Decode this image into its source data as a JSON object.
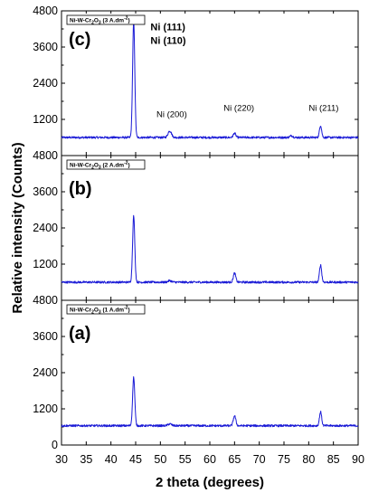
{
  "chart_data": {
    "type": "line",
    "xlabel": "2 theta (degrees)",
    "ylabel": "Relative intensity (Counts)",
    "x_ticks": [
      "30",
      "35",
      "40",
      "45",
      "50",
      "55",
      "60",
      "65",
      "70",
      "75",
      "80",
      "85",
      "90"
    ],
    "xlim": [
      30,
      90
    ],
    "line_color": "#1a1ad6",
    "panels": [
      {
        "id": "c",
        "letter": "(c)",
        "legend": "Ni-W-Cr2O3 (3 A.dm-2)",
        "legend_main": "Ni-W-Cr",
        "legend_sub": "2",
        "legend_o": "O",
        "legend_sub2": "3",
        "legend_rest": " (3 A.dm",
        "legend_sup": "-2",
        "legend_end": ")",
        "ylim": [
          0,
          4800
        ],
        "y_ticks": [
          "1200",
          "2400",
          "3600",
          "4800"
        ],
        "baseline": 600,
        "peaks": [
          {
            "x": 44.6,
            "y": 4450,
            "w": 0.22
          },
          {
            "x": 51.9,
            "y": 820,
            "w": 0.35
          },
          {
            "x": 65.0,
            "y": 740,
            "w": 0.25
          },
          {
            "x": 76.5,
            "y": 660,
            "w": 0.3
          },
          {
            "x": 82.4,
            "y": 1000,
            "w": 0.22
          }
        ],
        "annotations": [
          {
            "text": "Ni (111)",
            "x": 48.0,
            "y": 4150,
            "big": true
          },
          {
            "text": "Ni (110)",
            "x": 48.0,
            "y": 3700,
            "big": true
          },
          {
            "text": "Ni (200)",
            "x": 49.2,
            "y": 1280,
            "big": false
          },
          {
            "text": "Ni (220)",
            "x": 62.8,
            "y": 1480,
            "big": false
          },
          {
            "text": "Ni (211)",
            "x": 80.0,
            "y": 1480,
            "big": false
          }
        ]
      },
      {
        "id": "b",
        "letter": "(b)",
        "legend": "Ni-W-Cr2O3 (2 A.dm-2)",
        "legend_main": "Ni-W-Cr",
        "legend_sub": "2",
        "legend_o": "O",
        "legend_sub2": "3",
        "legend_rest": " (2 A.dm",
        "legend_sup": "-2",
        "legend_end": ")",
        "ylim": [
          0,
          4800
        ],
        "y_ticks": [
          "1200",
          "2400",
          "3600",
          "4800"
        ],
        "baseline": 600,
        "peaks": [
          {
            "x": 44.6,
            "y": 2800,
            "w": 0.22
          },
          {
            "x": 51.9,
            "y": 650,
            "w": 0.35
          },
          {
            "x": 65.0,
            "y": 900,
            "w": 0.25
          },
          {
            "x": 82.4,
            "y": 1170,
            "w": 0.22
          }
        ],
        "annotations": []
      },
      {
        "id": "a",
        "letter": "(a)",
        "legend": "Ni-W-Cr2O3 (1 A.dm-2)",
        "legend_main": "Ni-W-Cr",
        "legend_sub": "2",
        "legend_o": "O",
        "legend_sub2": "3",
        "legend_rest": " (1 A.dm",
        "legend_sup": "-2",
        "legend_end": ")",
        "ylim": [
          0,
          4800
        ],
        "y_ticks": [
          "0",
          "1200",
          "2400",
          "3600",
          "4800"
        ],
        "baseline": 640,
        "peaks": [
          {
            "x": 44.6,
            "y": 2250,
            "w": 0.22
          },
          {
            "x": 51.9,
            "y": 700,
            "w": 0.35
          },
          {
            "x": 65.0,
            "y": 970,
            "w": 0.25
          },
          {
            "x": 82.4,
            "y": 1100,
            "w": 0.22
          }
        ],
        "annotations": []
      }
    ]
  }
}
